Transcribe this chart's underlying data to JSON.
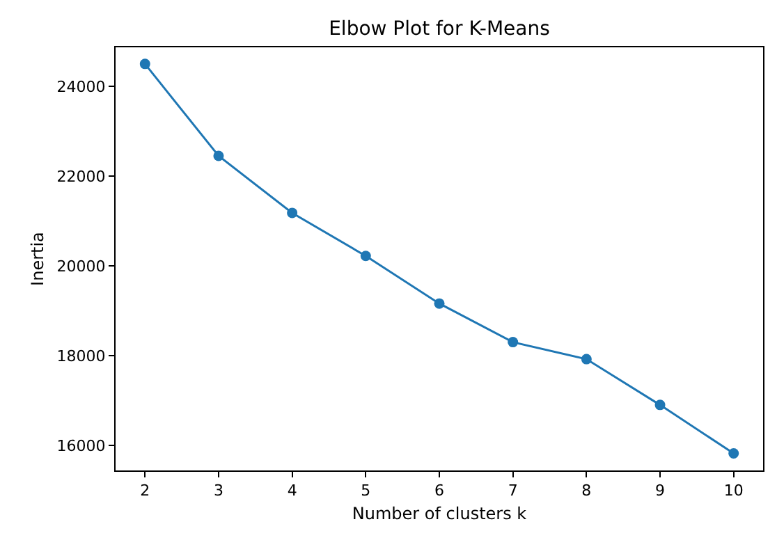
{
  "chart_data": {
    "type": "line",
    "title": "Elbow Plot for K-Means",
    "xlabel": "Number of clusters k",
    "ylabel": "Inertia",
    "x": [
      2,
      3,
      4,
      5,
      6,
      7,
      8,
      9,
      10
    ],
    "series": [
      {
        "color": "#1f77b4",
        "values": [
          24500,
          22450,
          21180,
          20220,
          19160,
          18300,
          17920,
          16900,
          15820
        ]
      }
    ],
    "xlim": [
      1.6,
      10.4
    ],
    "xticks": [
      2,
      3,
      4,
      5,
      6,
      7,
      8,
      9,
      10
    ],
    "ylim": [
      15440,
      24870
    ],
    "yticks": [
      16000,
      18000,
      20000,
      22000,
      24000
    ],
    "marker": "circle",
    "line_style": "solid"
  }
}
